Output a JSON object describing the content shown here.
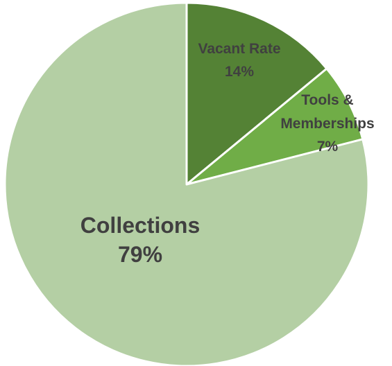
{
  "chart_data": {
    "type": "pie",
    "title": "",
    "slices": [
      {
        "label": "Vacant Rate",
        "value": 14,
        "value_label": "14%",
        "color": "#548235"
      },
      {
        "label": "Tools & Memberships",
        "value": 7,
        "value_label": "7%",
        "color": "#70AD47"
      },
      {
        "label": "Collections",
        "value": 79,
        "value_label": "79%",
        "color": "#B4CFA4"
      }
    ],
    "start_angle": "12 o'clock",
    "direction": "clockwise",
    "slice_border_color": "#FFFFFF",
    "legend": "none"
  }
}
